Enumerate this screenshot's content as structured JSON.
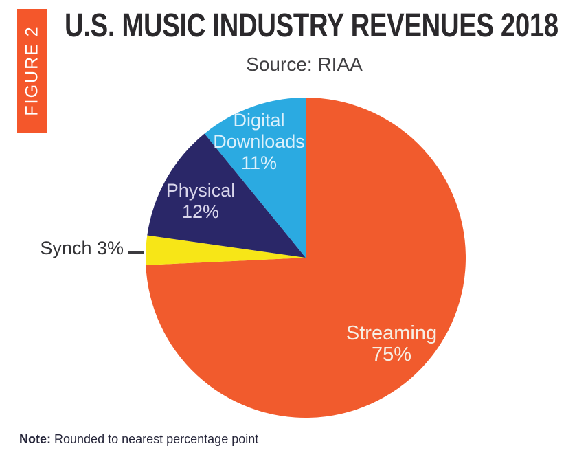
{
  "figure_label": "FIGURE 2",
  "header": {
    "title": "U.S. MUSIC INDUSTRY REVENUES 2018",
    "source": "Source: RIAA"
  },
  "note": {
    "label": "Note:",
    "text": "Rounded to nearest percentage point"
  },
  "colors": {
    "background": "#FFFFFF",
    "figure_box": "#F4572B",
    "title_text": "#2B292C",
    "subtitle_text": "#414043",
    "note_text": "#26263A",
    "synch_label_text": "#333336",
    "leader_line": "#3C3B3F"
  },
  "chart_data": {
    "type": "pie",
    "title": "U.S. MUSIC INDUSTRY REVENUES 2018",
    "subtitle": "Source: RIAA",
    "note": "Note: Rounded to nearest percentage point",
    "start_angle_deg": 0,
    "direction": "clockwise",
    "legend_position": "none",
    "slices": [
      {
        "label": "Streaming",
        "value_pct": 75,
        "color": "#F15B2D",
        "label_lines": [
          "Streaming",
          "75%"
        ],
        "label_color": "#F6EEE3",
        "label_position": "inside"
      },
      {
        "label": "Synch",
        "value_pct": 3,
        "color": "#F7E617",
        "label_lines": [
          "Synch 3%"
        ],
        "label_color": "#333336",
        "label_position": "outside-left"
      },
      {
        "label": "Physical",
        "value_pct": 12,
        "color": "#2A2768",
        "label_lines": [
          "Physical",
          "12%"
        ],
        "label_color": "#D9D6EB",
        "label_position": "inside"
      },
      {
        "label": "Digital Downloads",
        "value_pct": 11,
        "color": "#2BAAE1",
        "label_lines": [
          "Digital",
          "Downloads",
          "11%"
        ],
        "label_color": "#DCF0FB",
        "label_position": "inside"
      }
    ]
  }
}
